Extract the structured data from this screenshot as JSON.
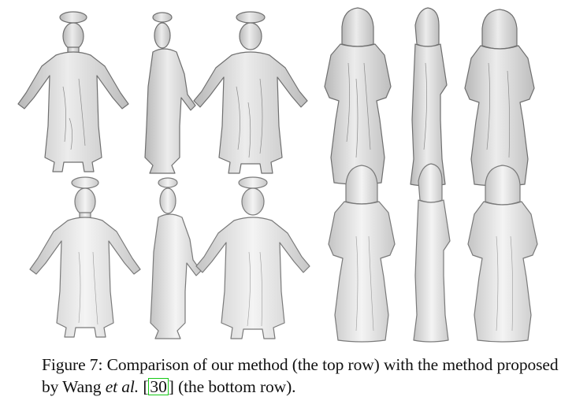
{
  "figure": {
    "caption": {
      "part1": "Figure 7: Comparison of our method (the top row) with the method proposed by Wang ",
      "italic": "et al.",
      "part2": " [",
      "citation": "30",
      "part3": "] (the bottom row)."
    },
    "rows": [
      {
        "name": "top",
        "panels": [
          "man-front",
          "man-side",
          "man-back",
          "monk-front",
          "monk-side",
          "monk-back"
        ]
      },
      {
        "name": "bottom",
        "panels": [
          "man-front",
          "man-side",
          "man-back",
          "monk-front",
          "monk-side",
          "monk-back"
        ]
      }
    ],
    "colors": {
      "link_box": "#16c916",
      "mesh_fill": "#d9d9d9",
      "mesh_stroke": "#6f6f6f"
    }
  }
}
